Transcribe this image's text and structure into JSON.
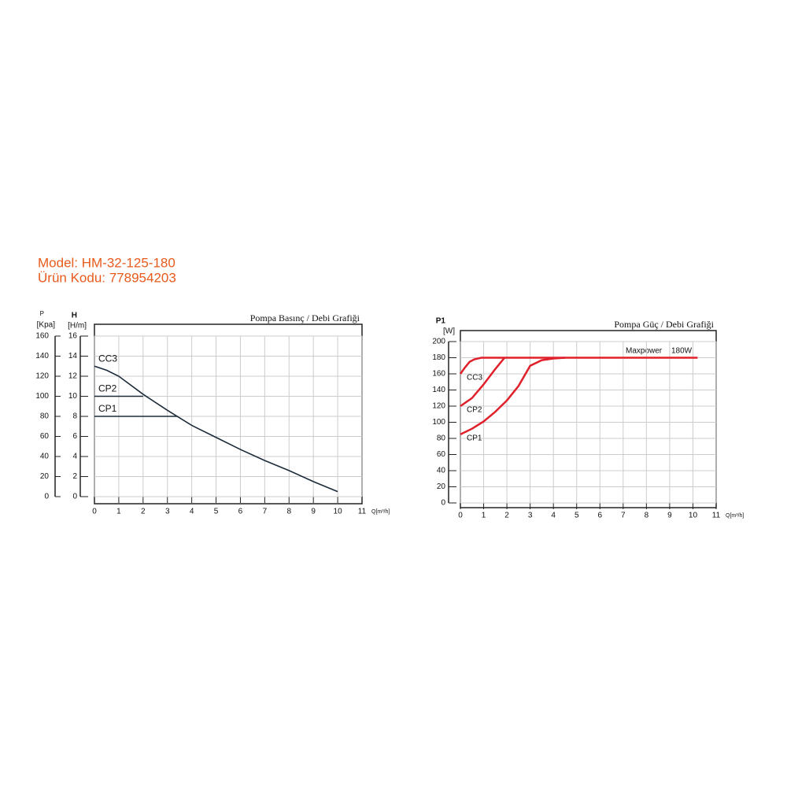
{
  "header": {
    "model": "Model: HM-32-125-180",
    "code": "Ürün Kodu: 778954203"
  },
  "chart_data": [
    {
      "type": "line",
      "title": "Pompa Basınç / Debi Grafiği",
      "y_label": "H",
      "y_unit": "[H/m]",
      "y2_label": "P",
      "y2_unit": "[Kpa]",
      "x_label": "Q[m³/h]",
      "xlim": [
        0,
        11
      ],
      "xticks": [
        0,
        1,
        2,
        3,
        4,
        5,
        6,
        7,
        8,
        9,
        10,
        11
      ],
      "ylim": [
        0,
        16
      ],
      "yticks": [
        0,
        2,
        4,
        6,
        8,
        10,
        12,
        14,
        16
      ],
      "y2lim": [
        0,
        160
      ],
      "y2ticks": [
        0,
        20,
        40,
        60,
        80,
        100,
        120,
        140,
        160
      ],
      "grid": true,
      "series": [
        {
          "name": "CC3",
          "color": "#1c2b3a",
          "x": [
            0,
            0.5,
            1,
            2,
            3,
            4,
            5,
            6,
            7,
            8,
            9,
            10
          ],
          "values": [
            13,
            12.6,
            12,
            10.2,
            8.6,
            7.1,
            5.9,
            4.7,
            3.6,
            2.6,
            1.5,
            0.5
          ]
        },
        {
          "name": "CP2",
          "color": "#1c2b3a",
          "x": [
            0,
            2
          ],
          "values": [
            10,
            10
          ]
        },
        {
          "name": "CP1",
          "color": "#1c2b3a",
          "x": [
            0,
            3.4
          ],
          "values": [
            8,
            8
          ]
        }
      ]
    },
    {
      "type": "line",
      "title": "Pompa Güç / Debi Grafiği",
      "y_label": "P1",
      "y_unit": "[W]",
      "x_label": "Q[m³/h]",
      "annotation": "Maxpower",
      "annotation_value": "180W",
      "xlim": [
        0,
        11
      ],
      "xticks": [
        0,
        1,
        2,
        3,
        4,
        5,
        6,
        7,
        8,
        9,
        10,
        11
      ],
      "ylim": [
        0,
        200
      ],
      "yticks": [
        0,
        20,
        40,
        60,
        80,
        100,
        120,
        140,
        160,
        180,
        200
      ],
      "grid": true,
      "series": [
        {
          "name": "CC3",
          "color": "#e0202a",
          "x": [
            0,
            0.2,
            0.4,
            0.6,
            0.9,
            10.2
          ],
          "values": [
            160,
            168,
            175,
            178,
            180,
            180
          ]
        },
        {
          "name": "CP2",
          "color": "#e0202a",
          "x": [
            0,
            0.5,
            1,
            1.5,
            1.9
          ],
          "values": [
            120,
            130,
            147,
            166,
            180
          ]
        },
        {
          "name": "CP1",
          "color": "#e0202a",
          "x": [
            0,
            0.5,
            1,
            1.5,
            2,
            2.5,
            3,
            3.5,
            4,
            4.5
          ],
          "values": [
            85,
            92,
            101,
            113,
            127,
            145,
            170,
            177,
            179,
            180
          ]
        }
      ]
    }
  ]
}
